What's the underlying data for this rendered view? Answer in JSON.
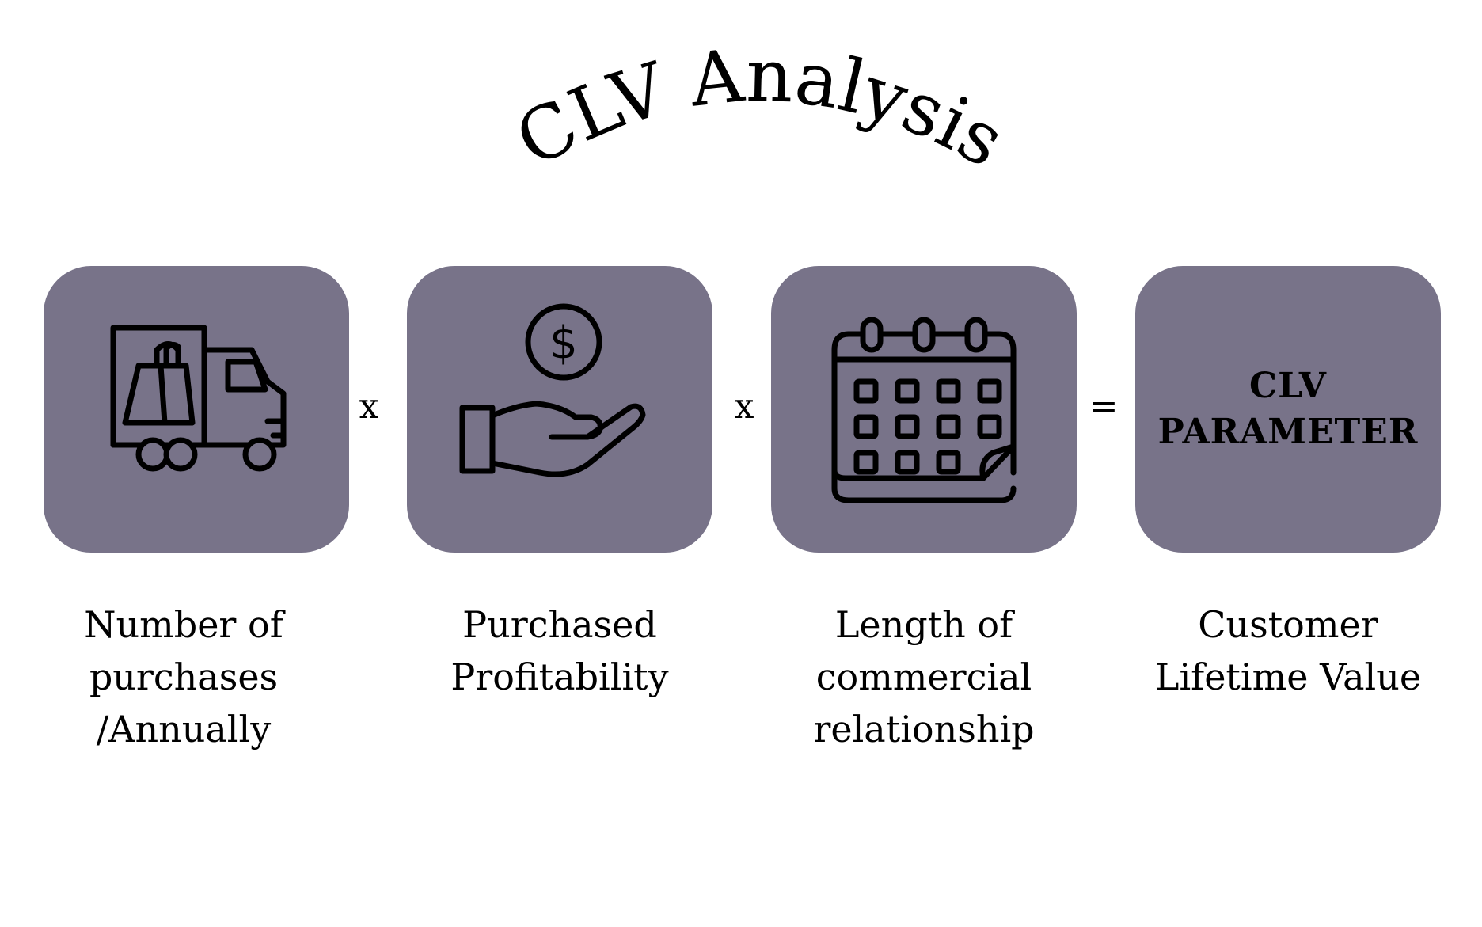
{
  "title": "CLV Analysis",
  "colors": {
    "tile": "#787389",
    "ink": "#000000",
    "background": "#ffffff"
  },
  "tiles": [
    {
      "icon": "delivery-truck-shopping-bag-icon",
      "caption": [
        "Number of",
        "purchases",
        "/Annually"
      ]
    },
    {
      "icon": "hand-holding-dollar-coin-icon",
      "caption": [
        "Purchased",
        "Profitability"
      ]
    },
    {
      "icon": "calendar-icon",
      "caption": [
        "Length of",
        "commercial",
        "relationship"
      ]
    },
    {
      "text": [
        "CLV",
        "PARAMETER"
      ],
      "caption": [
        "Customer",
        "Lifetime Value"
      ]
    }
  ],
  "operators": [
    "x",
    "x",
    "="
  ]
}
